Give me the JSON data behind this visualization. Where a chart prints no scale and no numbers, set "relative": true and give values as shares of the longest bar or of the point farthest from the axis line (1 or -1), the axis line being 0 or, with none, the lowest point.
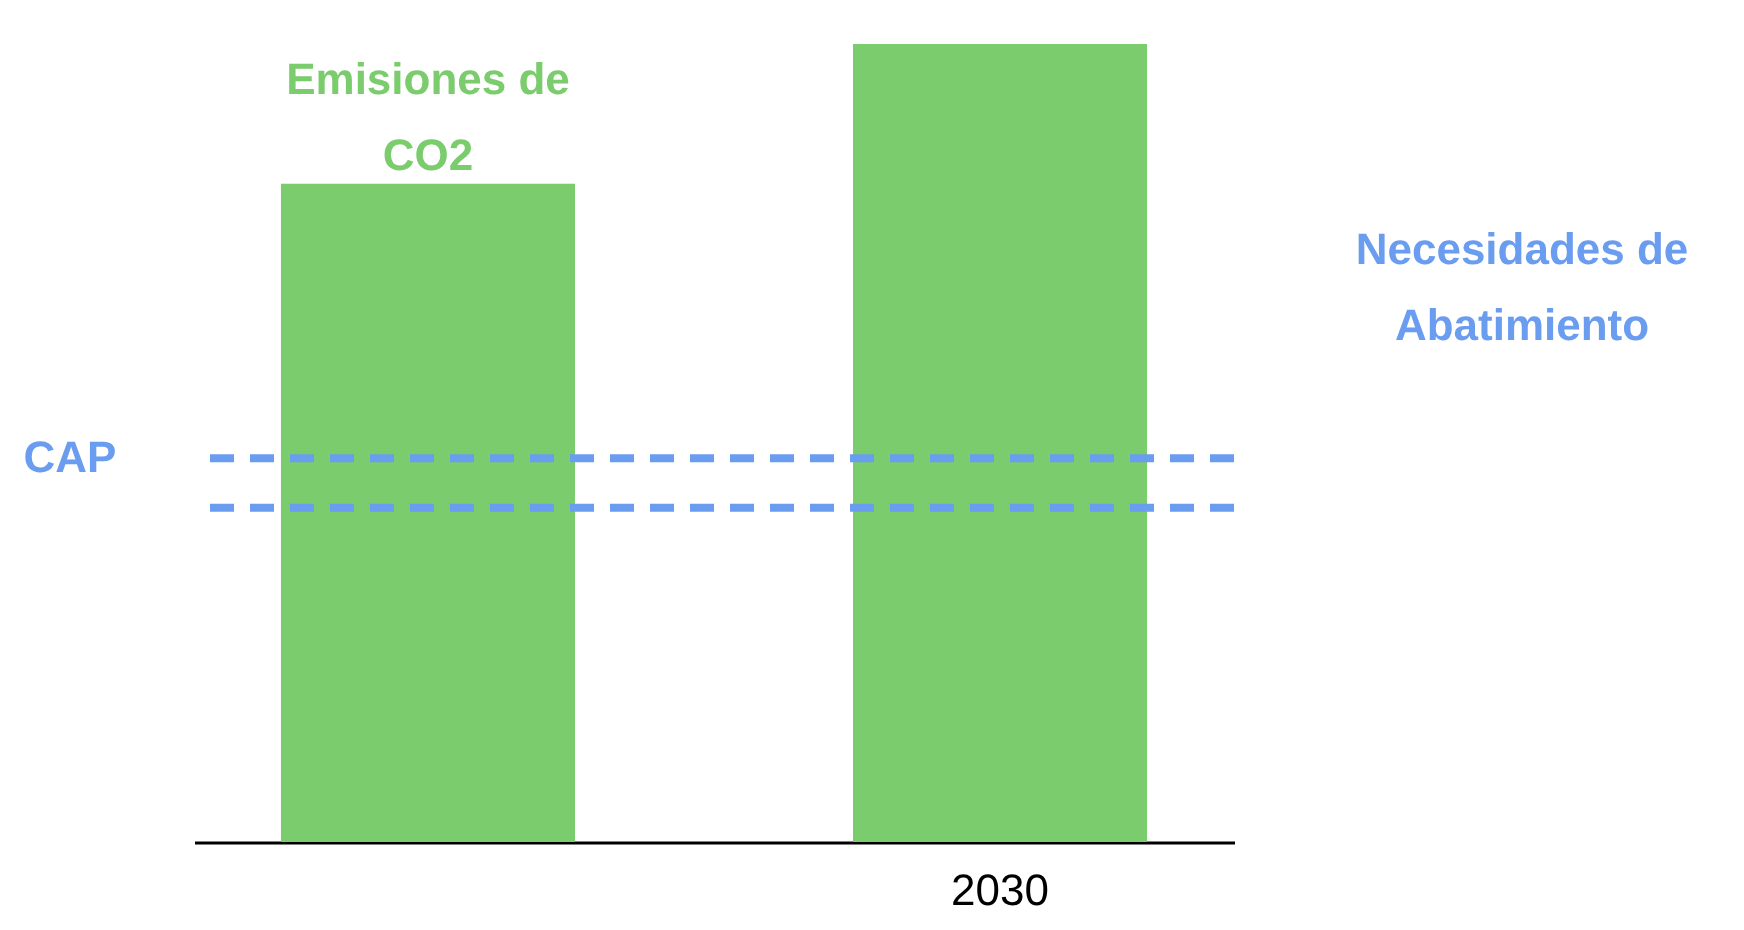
{
  "chart_data": {
    "type": "bar",
    "relative": true,
    "categories": [
      null,
      "2030"
    ],
    "values": [
      0.825,
      1
    ],
    "color": "#7acc6c",
    "ref_lines": [
      {
        "axis": "y",
        "value": 0.481,
        "label": "CAP",
        "color": "#6a9cf0",
        "line_style": "dashed"
      },
      {
        "axis": "y",
        "value": 0.419,
        "color": "#6a9cf0",
        "line_style": "dashed"
      }
    ],
    "annotations": [
      "Emisiones de CO2",
      "Necesidades de Abatimiento"
    ]
  }
}
